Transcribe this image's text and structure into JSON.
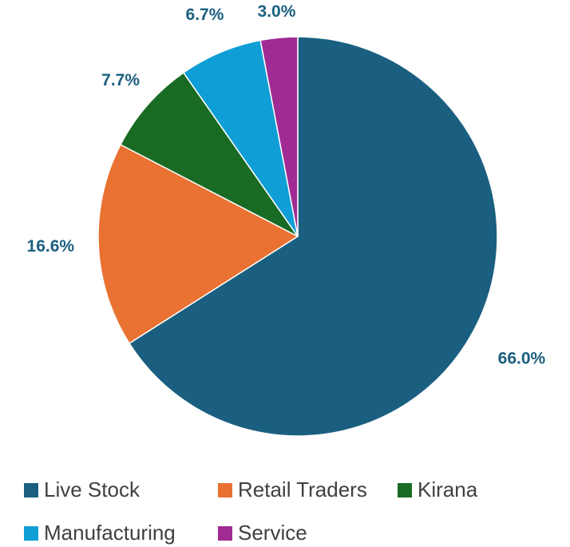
{
  "chart_data": {
    "type": "pie",
    "categories": [
      "Live Stock",
      "Retail Traders",
      "Kirana",
      "Manufacturing",
      "Service"
    ],
    "values": [
      66.0,
      16.6,
      7.7,
      6.7,
      3.0
    ],
    "value_labels": [
      "66.0%",
      "16.6%",
      "7.7%",
      "6.7%",
      "3.0%"
    ],
    "colors": [
      "#1a5f80",
      "#e97132",
      "#196b24",
      "#0f9ed5",
      "#a02b93"
    ],
    "legend": "bottom"
  }
}
